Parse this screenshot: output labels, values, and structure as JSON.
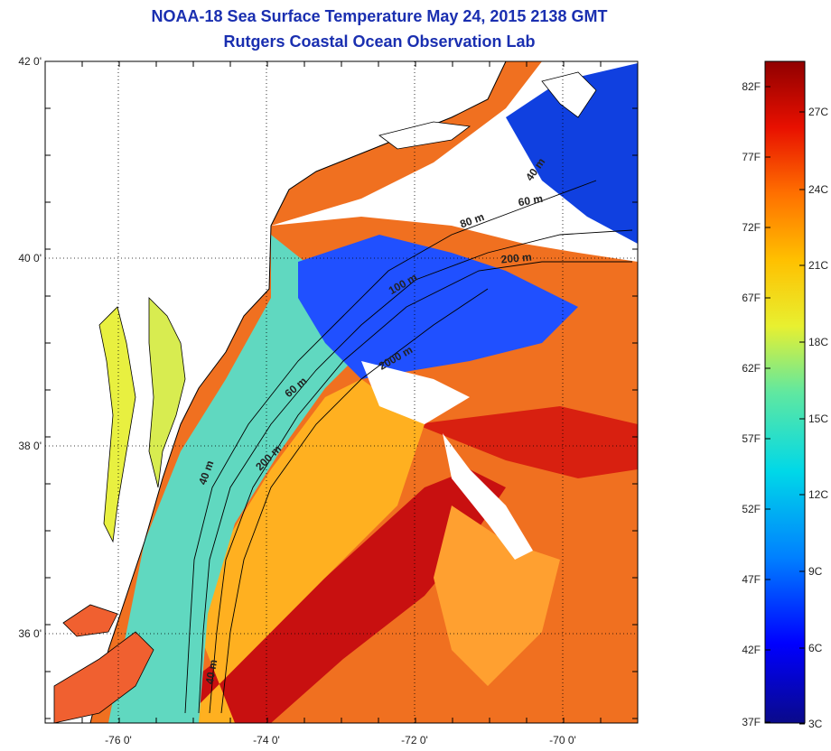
{
  "title": "NOAA-18 Sea Surface Temperature May 24, 2015 2138 GMT",
  "subtitle": "Rutgers Coastal Ocean Observation Lab",
  "map": {
    "lat_labels": [
      "42 0'",
      "40 0'",
      "38 0'",
      "36 0'"
    ],
    "lon_labels": [
      "-76 0'",
      "-74 0'",
      "-72 0'",
      "-70 0'"
    ],
    "contour_labels": [
      "40 m",
      "60 m",
      "80 m",
      "200 m",
      "100 m",
      "2000 m",
      "60 m",
      "200 m",
      "40 m",
      "40 m"
    ],
    "land_color": "#ffffff",
    "coast_color": "#000000"
  },
  "colorbar": {
    "fahrenheit_labels": [
      "82F",
      "77F",
      "72F",
      "67F",
      "62F",
      "57F",
      "52F",
      "47F",
      "42F",
      "37F"
    ],
    "celsius_labels": [
      "27C",
      "24C",
      "21C",
      "18C",
      "15C",
      "12C",
      "9C",
      "6C",
      "3C"
    ],
    "colors": [
      "#0a0a8a",
      "#0000ff",
      "#0080ff",
      "#00d8e8",
      "#60e8a0",
      "#e8f030",
      "#ffc000",
      "#ff7000",
      "#e81000",
      "#900000"
    ]
  }
}
